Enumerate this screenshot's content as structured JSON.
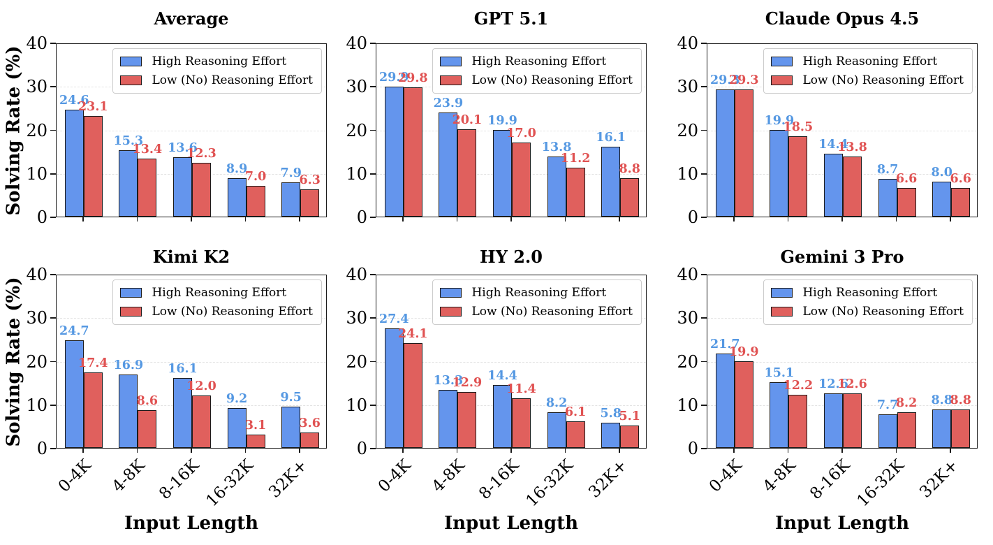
{
  "figure": {
    "ylabel": "Solving Rate (%)",
    "xlabel": "Input Length"
  },
  "colors": {
    "bar_high": "#6495ED",
    "bar_low": "#E0605D",
    "label_high": "#5598E2",
    "label_low": "#E05252",
    "bar_edge": "#1B1B1B",
    "axis": "#1B1B1B",
    "grid": "#E2E2E2",
    "background": "#FFFFFF"
  },
  "chart_data": {
    "type": "bar",
    "categories": [
      "0-4K",
      "4-8K",
      "8-16K",
      "16-32K",
      "32K+"
    ],
    "xlabel": "Input Length",
    "ylabel": "Solving Rate (%)",
    "ylim": [
      0,
      40
    ],
    "yticks": [
      0,
      10,
      20,
      30,
      40
    ],
    "grid": true,
    "legend_position": "upper right",
    "series_names": [
      "High Reasoning Effort",
      "Low (No) Reasoning Effort"
    ],
    "subplots": [
      {
        "title": "Average",
        "high": [
          24.6,
          15.3,
          13.6,
          8.9,
          7.9
        ],
        "low": [
          23.1,
          13.4,
          12.3,
          7.0,
          6.3
        ]
      },
      {
        "title": "GPT 5.1",
        "high": [
          29.9,
          23.9,
          19.9,
          13.8,
          16.1
        ],
        "low": [
          29.8,
          20.1,
          17.0,
          11.2,
          8.8
        ]
      },
      {
        "title": "Claude Opus 4.5",
        "high": [
          29.3,
          19.9,
          14.4,
          8.7,
          8.0
        ],
        "low": [
          29.3,
          18.5,
          13.8,
          6.6,
          6.6
        ]
      },
      {
        "title": "Kimi K2",
        "high": [
          24.7,
          16.9,
          16.1,
          9.2,
          9.5
        ],
        "low": [
          17.4,
          8.6,
          12.0,
          3.1,
          3.6
        ]
      },
      {
        "title": "HY 2.0",
        "high": [
          27.4,
          13.3,
          14.4,
          8.2,
          5.8
        ],
        "low": [
          24.1,
          12.9,
          11.4,
          6.1,
          5.1
        ]
      },
      {
        "title": "Gemini 3 Pro",
        "high": [
          21.7,
          15.1,
          12.6,
          7.7,
          8.8
        ],
        "low": [
          19.9,
          12.2,
          12.6,
          8.2,
          8.8
        ]
      }
    ]
  }
}
